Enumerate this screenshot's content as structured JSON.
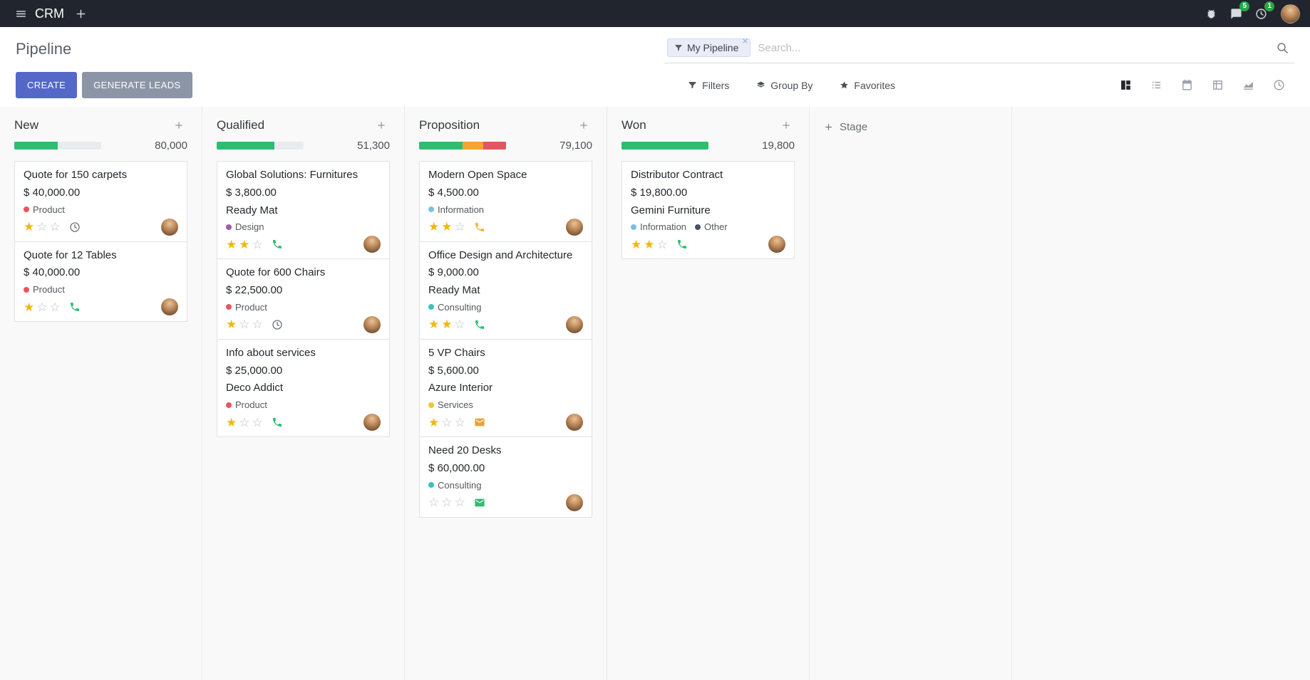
{
  "navbar": {
    "app_name": "CRM",
    "message_badge": "5",
    "activity_badge": "1"
  },
  "control_panel": {
    "breadcrumb": "Pipeline",
    "search": {
      "facet_label": "My Pipeline",
      "placeholder": "Search..."
    },
    "create_label": "CREATE",
    "generate_leads_label": "GENERATE LEADS",
    "tools": [
      {
        "icon": "filter",
        "label": "Filters"
      },
      {
        "icon": "layers",
        "label": "Group By"
      },
      {
        "icon": "star",
        "label": "Favorites"
      }
    ],
    "views": [
      {
        "name": "kanban",
        "icon": "kanban",
        "active": true
      },
      {
        "name": "list",
        "icon": "list",
        "active": false
      },
      {
        "name": "calendar",
        "icon": "calendar",
        "active": false
      },
      {
        "name": "pivot",
        "icon": "pivot",
        "active": false
      },
      {
        "name": "graph",
        "icon": "graph",
        "active": false
      },
      {
        "name": "activity",
        "icon": "clock",
        "active": false
      }
    ]
  },
  "board": {
    "add_stage_label": "Stage",
    "columns": [
      {
        "name": "New",
        "counter": "80,000",
        "progress": [
          {
            "color": "#2ebe71",
            "pct": 50
          }
        ],
        "cards": [
          {
            "title": "Quote for 150 carpets",
            "amount": "$ 40,000.00",
            "tags": [
              {
                "label": "Product",
                "color": "#ec535e"
              }
            ],
            "stars": 1,
            "activity": {
              "icon": "clock",
              "color": "#6c757d"
            }
          },
          {
            "title": "Quote for 12 Tables",
            "amount": "$ 40,000.00",
            "tags": [
              {
                "label": "Product",
                "color": "#ec535e"
              }
            ],
            "stars": 1,
            "activity": {
              "icon": "phone",
              "color": "#2ebe71"
            }
          }
        ]
      },
      {
        "name": "Qualified",
        "counter": "51,300",
        "progress": [
          {
            "color": "#2ebe71",
            "pct": 66
          }
        ],
        "cards": [
          {
            "title": "Global Solutions: Furnitures",
            "amount": "$ 3,800.00",
            "partner": "Ready Mat",
            "tags": [
              {
                "label": "Design",
                "color": "#a559b2"
              }
            ],
            "stars": 2,
            "activity": {
              "icon": "phone",
              "color": "#2ebe71"
            }
          },
          {
            "title": "Quote for 600 Chairs",
            "amount": "$ 22,500.00",
            "tags": [
              {
                "label": "Product",
                "color": "#ec535e"
              }
            ],
            "stars": 1,
            "activity": {
              "icon": "clock",
              "color": "#6c757d"
            }
          },
          {
            "title": "Info about services",
            "amount": "$ 25,000.00",
            "partner": "Deco Addict",
            "tags": [
              {
                "label": "Product",
                "color": "#ec535e"
              }
            ],
            "stars": 1,
            "activity": {
              "icon": "phone",
              "color": "#2ebe71"
            }
          }
        ]
      },
      {
        "name": "Proposition",
        "counter": "79,100",
        "progress": [
          {
            "color": "#2ebe71",
            "pct": 50
          },
          {
            "color": "#f5a52f",
            "pct": 24
          },
          {
            "color": "#e25563",
            "pct": 26
          }
        ],
        "cards": [
          {
            "title": "Modern Open Space",
            "amount": "$ 4,500.00",
            "tags": [
              {
                "label": "Information",
                "color": "#79c0e9"
              }
            ],
            "stars": 2,
            "activity": {
              "icon": "phone",
              "color": "#edb53c"
            }
          },
          {
            "title": "Office Design and Architecture",
            "amount": "$ 9,000.00",
            "partner": "Ready Mat",
            "tags": [
              {
                "label": "Consulting",
                "color": "#3bc0c3"
              }
            ],
            "stars": 2,
            "activity": {
              "icon": "phone",
              "color": "#2ebe71"
            }
          },
          {
            "title": "5 VP Chairs",
            "amount": "$ 5,600.00",
            "partner": "Azure Interior",
            "tags": [
              {
                "label": "Services",
                "color": "#f0c53c"
              }
            ],
            "stars": 1,
            "activity": {
              "icon": "envelope",
              "color": "#e7a33c"
            }
          },
          {
            "title": "Need 20 Desks",
            "amount": "$ 60,000.00",
            "tags": [
              {
                "label": "Consulting",
                "color": "#3bc0c3"
              }
            ],
            "stars": 0,
            "activity": {
              "icon": "envelope",
              "color": "#2ebe71"
            }
          }
        ]
      },
      {
        "name": "Won",
        "counter": "19,800",
        "progress": [
          {
            "color": "#2ebe71",
            "pct": 100
          }
        ],
        "cards": [
          {
            "title": "Distributor Contract",
            "amount": "$ 19,800.00",
            "partner": "Gemini Furniture",
            "tags": [
              {
                "label": "Information",
                "color": "#79c0e9"
              },
              {
                "label": "Other",
                "color": "#475063"
              }
            ],
            "stars": 2,
            "activity": {
              "icon": "phone",
              "color": "#2ebe71"
            }
          }
        ]
      }
    ]
  },
  "icons": {
    "menu": "menu",
    "add": "plus",
    "bug": "bug",
    "messages": "comment",
    "activities": "clock",
    "filter": "filter",
    "search": "search",
    "remove": "x"
  },
  "colors": {
    "star_filled": "#efb810",
    "star_empty": "#b8bcc2",
    "primary": "#5468c8",
    "success": "#2ebe71",
    "warning": "#f5a52f",
    "danger": "#e25563"
  }
}
